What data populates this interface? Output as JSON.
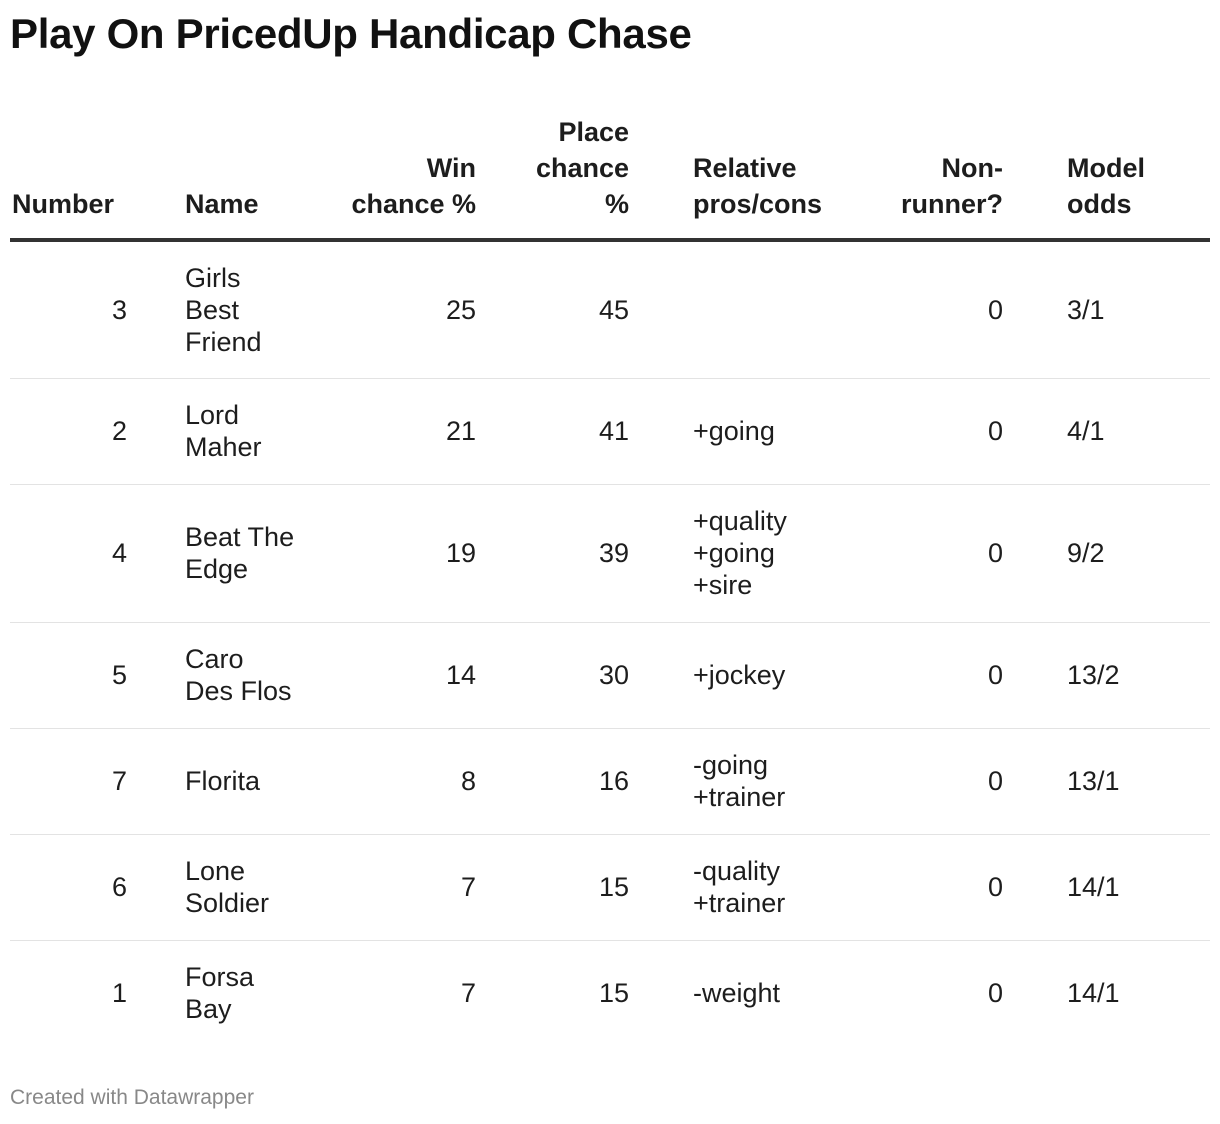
{
  "title": "Play On PricedUp Handicap Chase",
  "footer": "Created with Datawrapper",
  "chart_data": {
    "type": "table",
    "title": "Play On PricedUp Handicap Chase",
    "columns": [
      "Number",
      "Name",
      "Win chance %",
      "Place chance %",
      "Relative pros/cons",
      "Non-runner?",
      "Model odds"
    ],
    "header_lines": {
      "number": "Number",
      "name": "Name",
      "win": "Win\nchance\n%",
      "place": "Place\nchance\n%",
      "relative": "Relative\npros/cons",
      "nonrunner": "Non-\nrunner?",
      "odds": "Model\nodds"
    },
    "rows": [
      {
        "number": "3",
        "name": "Girls\nBest\nFriend",
        "win": "25",
        "place": "45",
        "relative": "",
        "nonrunner": "0",
        "odds": "3/1"
      },
      {
        "number": "2",
        "name": "Lord\nMaher",
        "win": "21",
        "place": "41",
        "relative": "+going",
        "nonrunner": "0",
        "odds": "4/1"
      },
      {
        "number": "4",
        "name": "Beat The\nEdge",
        "win": "19",
        "place": "39",
        "relative": "+quality\n+going\n+sire",
        "nonrunner": "0",
        "odds": "9/2"
      },
      {
        "number": "5",
        "name": "Caro\nDes Flos",
        "win": "14",
        "place": "30",
        "relative": "+jockey",
        "nonrunner": "0",
        "odds": "13/2"
      },
      {
        "number": "7",
        "name": "Florita",
        "win": "8",
        "place": "16",
        "relative": "-going\n+trainer",
        "nonrunner": "0",
        "odds": "13/1"
      },
      {
        "number": "6",
        "name": "Lone\nSoldier",
        "win": "7",
        "place": "15",
        "relative": "-quality\n+trainer",
        "nonrunner": "0",
        "odds": "14/1"
      },
      {
        "number": "1",
        "name": "Forsa\nBay",
        "win": "7",
        "place": "15",
        "relative": "-weight",
        "nonrunner": "0",
        "odds": "14/1"
      }
    ]
  }
}
